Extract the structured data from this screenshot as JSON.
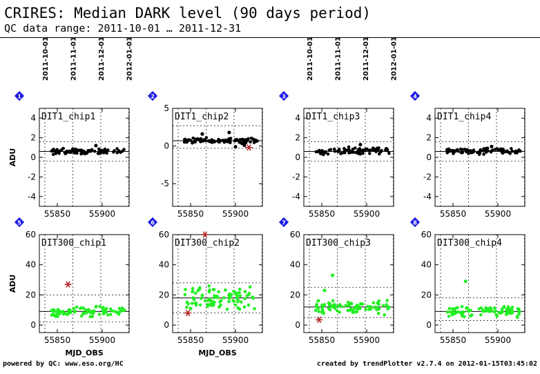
{
  "header": {
    "title": "CRIRES: Median DARK level (90 days period)",
    "subtitle": "QC data range: 2011-10-01 … 2011-12-31"
  },
  "footer": {
    "left": "powered by QC: www.eso.org/HC",
    "right": "created by trendPlotter v2.7.4 on 2012-01-15T03:45:02"
  },
  "colors": {
    "badge": "#1a1ae6",
    "dit1_points": "#000000",
    "dit300_points": "#22ee22",
    "outlier": "#b22222"
  },
  "date_ticks": [
    "2011-10-01",
    "2011-11-01",
    "2011-12-01",
    "2012-01-01"
  ],
  "chart_data": [
    {
      "id": 1,
      "type": "scatter",
      "label": "DIT1_chip1",
      "ylabel": "ADU",
      "xlim": [
        55830,
        55930
      ],
      "ylim": [
        -5,
        5
      ],
      "yticks": [
        -4,
        -2,
        0,
        2,
        4
      ],
      "xticks": [
        55850,
        55900
      ],
      "median": 0.6,
      "limits": [
        -0.4,
        1.6
      ],
      "series_color": "black",
      "center": 0.6,
      "spread": 0.25,
      "points": [
        [
          55893,
          1.2
        ]
      ],
      "outliers": []
    },
    {
      "id": 2,
      "type": "scatter",
      "label": "DIT1_chip2",
      "ylabel": "",
      "xlim": [
        55830,
        55930
      ],
      "ylim": [
        -8,
        5
      ],
      "yticks": [
        -5,
        0,
        5
      ],
      "xticks": [
        55850,
        55900
      ],
      "median": 0.7,
      "limits": [
        -0.3,
        2.7
      ],
      "series_color": "black",
      "center": 0.7,
      "spread": 0.3,
      "points": [
        [
          55863,
          1.6
        ],
        [
          55893,
          1.8
        ],
        [
          55900,
          -0.1
        ],
        [
          55910,
          0.1
        ]
      ],
      "outliers": [
        [
          55915,
          -0.2
        ]
      ]
    },
    {
      "id": 3,
      "type": "scatter",
      "label": "DIT1_chip3",
      "ylabel": "",
      "xlim": [
        55830,
        55930
      ],
      "ylim": [
        -5,
        5
      ],
      "yticks": [
        -4,
        -2,
        0,
        2,
        4
      ],
      "xticks": [
        55850,
        55900
      ],
      "median": 0.6,
      "limits": [
        -0.4,
        1.6
      ],
      "series_color": "black",
      "center": 0.65,
      "spread": 0.3,
      "points": [
        [
          55893,
          1.3
        ]
      ],
      "outliers": []
    },
    {
      "id": 4,
      "type": "scatter",
      "label": "DIT1_chip4",
      "ylabel": "",
      "xlim": [
        55830,
        55930
      ],
      "ylim": [
        -5,
        5
      ],
      "yticks": [
        -4,
        -2,
        0,
        2,
        4
      ],
      "xticks": [
        55850,
        55900
      ],
      "median": 0.6,
      "limits": [
        -0.4,
        1.6
      ],
      "series_color": "black",
      "center": 0.6,
      "spread": 0.25,
      "points": [
        [
          55893,
          1.1
        ]
      ],
      "outliers": []
    },
    {
      "id": 5,
      "type": "scatter",
      "label": "DIT300_chip1",
      "ylabel": "ADU",
      "xlim": [
        55830,
        55930
      ],
      "ylim": [
        -5,
        60
      ],
      "yticks": [
        0,
        20,
        40,
        60
      ],
      "xticks": [
        55850,
        55900
      ],
      "median": 9,
      "limits": [
        2,
        20
      ],
      "series_color": "green",
      "center": 9,
      "spread": 3,
      "points": [],
      "outliers": [
        [
          55862,
          27
        ]
      ]
    },
    {
      "id": 6,
      "type": "scatter",
      "label": "DIT300_chip2",
      "ylabel": "",
      "xlim": [
        55830,
        55930
      ],
      "ylim": [
        -5,
        60
      ],
      "yticks": [
        0,
        20,
        40,
        60
      ],
      "xticks": [
        55850,
        55900
      ],
      "median": 18,
      "limits": [
        8,
        28
      ],
      "series_color": "green",
      "center": 18,
      "spread": 6,
      "points": [
        [
          55850,
          11
        ],
        [
          55860,
          24
        ]
      ],
      "outliers": [
        [
          55847,
          8
        ],
        [
          55866,
          60
        ]
      ]
    },
    {
      "id": 7,
      "type": "scatter",
      "label": "DIT300_chip3",
      "ylabel": "",
      "xlim": [
        55830,
        55930
      ],
      "ylim": [
        -5,
        60
      ],
      "yticks": [
        0,
        20,
        40,
        60
      ],
      "xticks": [
        55850,
        55900
      ],
      "median": 12,
      "limits": [
        5,
        25
      ],
      "series_color": "green",
      "center": 12,
      "spread": 4,
      "points": [
        [
          55862,
          33
        ],
        [
          55853,
          23
        ]
      ],
      "outliers": [
        [
          55847,
          3.5
        ]
      ]
    },
    {
      "id": 8,
      "type": "scatter",
      "label": "DIT300_chip4",
      "ylabel": "",
      "xlim": [
        55830,
        55930
      ],
      "ylim": [
        -5,
        60
      ],
      "yticks": [
        0,
        20,
        40,
        60
      ],
      "xticks": [
        55850,
        55900
      ],
      "median": 9,
      "limits": [
        3,
        18
      ],
      "series_color": "green",
      "center": 9,
      "spread": 3,
      "points": [
        [
          55864,
          29
        ]
      ],
      "outliers": []
    }
  ],
  "axis": {
    "xlabel": "MJD_OBS"
  }
}
